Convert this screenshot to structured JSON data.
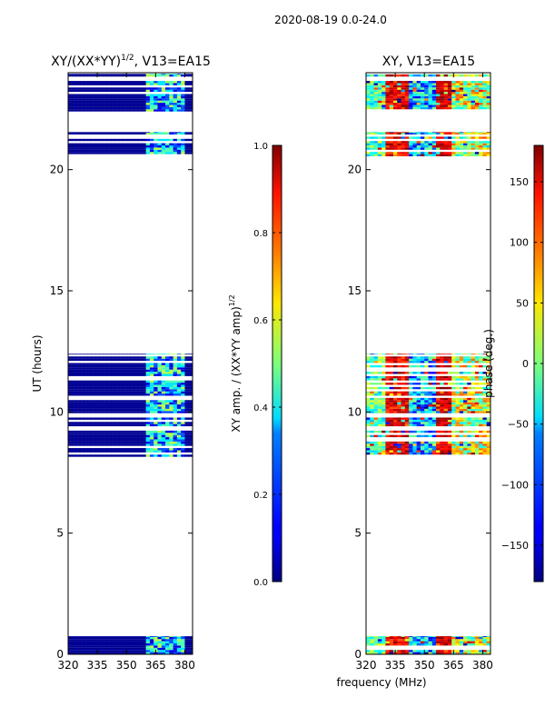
{
  "figure": {
    "suptitle": "2020-08-19 0.0-24.0",
    "xlabel": "frequency (MHz)"
  },
  "chart_data": [
    {
      "type": "heatmap",
      "title": "XY/(XX*YY)",
      "title_exp": "1/2",
      "title_suffix": ", V13=EA15",
      "ylabel": "UT (hours)",
      "xlim": [
        320,
        384
      ],
      "ylim": [
        0,
        24
      ],
      "xticks": [
        320,
        335,
        350,
        365,
        380
      ],
      "yticks": [
        0,
        5,
        10,
        15,
        20
      ],
      "colorbar": {
        "label": "XY amp. / (XX*YY amp)",
        "label_exp": "1/2",
        "range": [
          0.0,
          1.0
        ],
        "ticks": [
          "0.0",
          "0.2",
          "0.4",
          "0.6",
          "0.8",
          "1.0"
        ],
        "colormap": "jet"
      }
    },
    {
      "type": "heatmap",
      "title": "XY, V13=EA15",
      "xlim": [
        320,
        384
      ],
      "ylim": [
        0,
        24
      ],
      "xticks": [
        320,
        335,
        350,
        365,
        380
      ],
      "yticks": [
        0,
        5,
        10,
        15,
        20
      ],
      "colorbar": {
        "label": "phase (deg.)",
        "range": [
          -180,
          180
        ],
        "ticks": [
          "−150",
          "−100",
          "−50",
          "0",
          "50",
          "100",
          "150"
        ],
        "colormap": "jet"
      }
    }
  ]
}
